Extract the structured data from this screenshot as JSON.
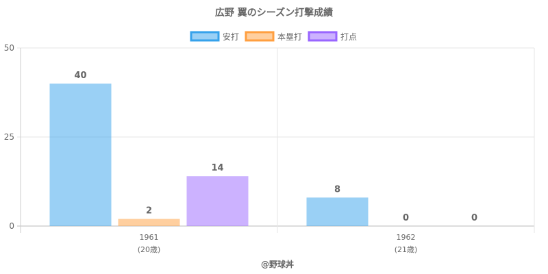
{
  "chart_data": {
    "type": "bar",
    "title": "広野 翼のシーズン打撃成績",
    "categories": [
      "1961",
      "1962"
    ],
    "category_sublabels": [
      "(20歳)",
      "(21歳)"
    ],
    "series": [
      {
        "name": "安打",
        "values": [
          40,
          8
        ],
        "color": "#36a2eb"
      },
      {
        "name": "本塁打",
        "values": [
          2,
          0
        ],
        "color": "#ff9f40"
      },
      {
        "name": "打点",
        "values": [
          14,
          0
        ],
        "color": "#9966ff"
      }
    ],
    "y_ticks": [
      "0",
      "25",
      "50"
    ],
    "ylim": [
      0,
      50
    ],
    "grid": true,
    "legend_position": "top"
  },
  "footer": {
    "credit": "@野球丼"
  }
}
